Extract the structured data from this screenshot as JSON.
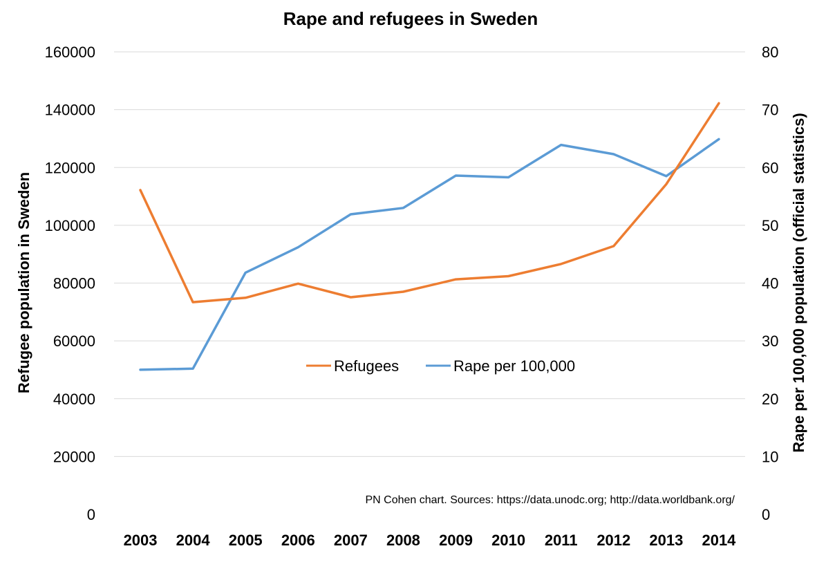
{
  "chart_data": {
    "type": "line",
    "title": "Rape and refugees in Sweden",
    "source": "PN Cohen chart. Sources: https://data.unodc.org; http://data.worldbank.org/",
    "categories": [
      "2003",
      "2004",
      "2005",
      "2006",
      "2007",
      "2008",
      "2009",
      "2010",
      "2011",
      "2012",
      "2013",
      "2014"
    ],
    "y_left": {
      "label": "Refugee population in Sweden",
      "lim": [
        0,
        160000
      ],
      "ticks": [
        "0",
        "20000",
        "40000",
        "60000",
        "80000",
        "100000",
        "120000",
        "140000",
        "160000"
      ]
    },
    "y_right": {
      "label": "Rape per 100,000 population (official statistics)",
      "lim": [
        0,
        80
      ],
      "ticks": [
        "0",
        "10",
        "20",
        "30",
        "40",
        "50",
        "60",
        "70",
        "80"
      ]
    },
    "grid": true,
    "legend_position": "center",
    "series": [
      {
        "name": "Refugees",
        "axis": "left",
        "color": "#ed7d31",
        "values": [
          112200,
          73400,
          74900,
          79800,
          75100,
          77000,
          81300,
          82400,
          86600,
          92800,
          114200,
          142200
        ]
      },
      {
        "name": "Rape per 100,000",
        "axis": "right",
        "color": "#5b9bd5",
        "values": [
          25.0,
          25.2,
          41.8,
          46.2,
          51.9,
          53.0,
          58.6,
          58.3,
          63.9,
          62.3,
          58.5,
          64.9
        ]
      }
    ]
  }
}
